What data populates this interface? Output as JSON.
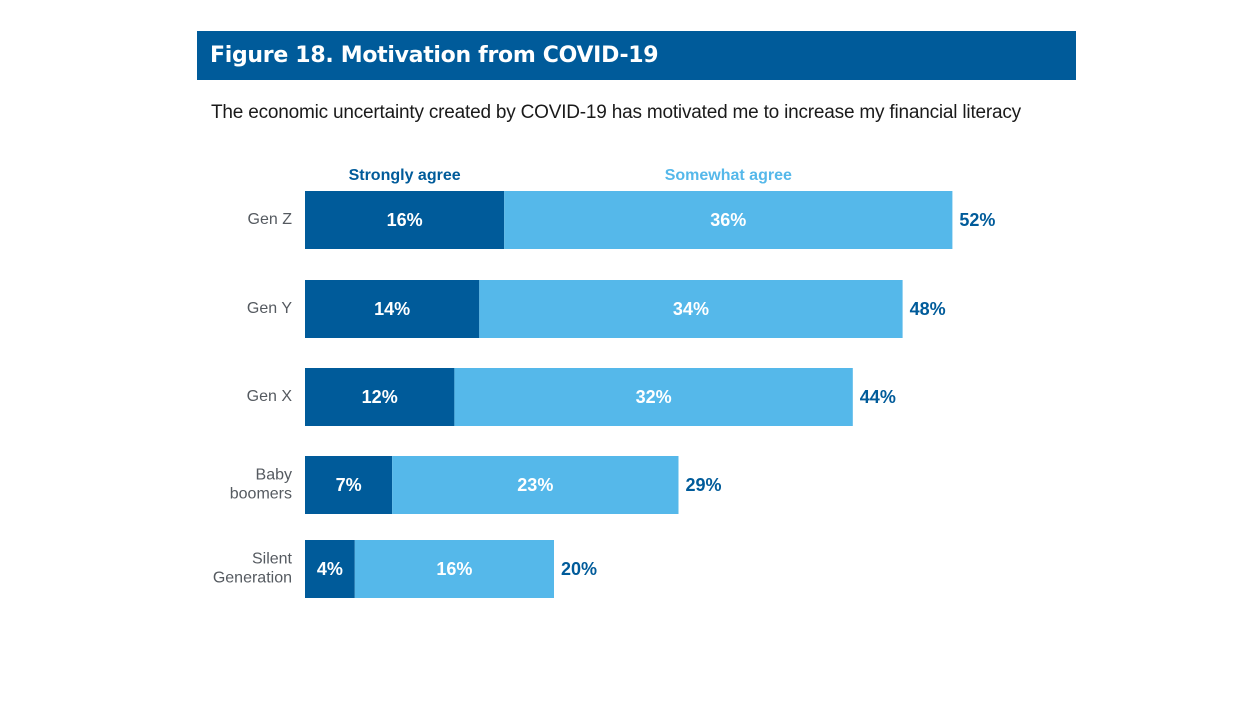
{
  "header": {
    "title": "Figure 18. Motivation from COVID-19"
  },
  "chart_data": {
    "type": "bar",
    "orientation": "horizontal",
    "stacked": true,
    "title": "Figure 18. Motivation from COVID-19",
    "subtitle": "The economic uncertainty created by COVID-19 has motivated me to increase my financial literacy",
    "categories": [
      [
        "Gen Z"
      ],
      [
        "Gen Y"
      ],
      [
        "Gen X"
      ],
      [
        "Baby",
        "boomers"
      ],
      [
        "Silent",
        "Generation"
      ]
    ],
    "series": [
      {
        "name": "Strongly agree",
        "color": "#005b9a",
        "values": [
          16,
          14,
          12,
          7,
          4
        ],
        "labels": [
          "16%",
          "14%",
          "12%",
          "7%",
          "4%"
        ]
      },
      {
        "name": "Somewhat agree",
        "color": "#55b8ea",
        "values": [
          36,
          34,
          32,
          23,
          16
        ],
        "labels": [
          "36%",
          "34%",
          "32%",
          "23%",
          "16%"
        ]
      }
    ],
    "totals": [
      52,
      48,
      44,
      29,
      20
    ],
    "total_labels": [
      "52%",
      "48%",
      "44%",
      "29%",
      "20%"
    ],
    "total_color": "#005b9a",
    "unit": "%",
    "xlim": [
      0,
      52
    ],
    "xlabel": "",
    "ylabel": "",
    "grid": false,
    "legend_position": "top"
  }
}
